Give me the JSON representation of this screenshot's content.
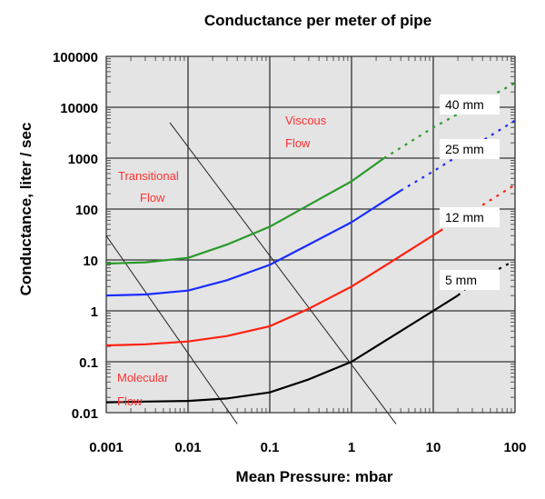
{
  "chart_data": {
    "type": "line",
    "title": "Conductance per meter of pipe",
    "xlabel": "Mean Pressure: mbar",
    "ylabel": "Conductance, liter / sec",
    "xscale": "log",
    "yscale": "log",
    "xlim": [
      0.001,
      100
    ],
    "ylim": [
      0.01,
      100000
    ],
    "grid": true,
    "xticks": [
      "0.001",
      "0.01",
      "0.1",
      "1",
      "10",
      "100"
    ],
    "yticks": [
      "0.01",
      "0.1",
      "1",
      "10",
      "100",
      "1000",
      "10000",
      "100000"
    ],
    "series": [
      {
        "name": "40 mm",
        "color": "#2a9a2a",
        "x": [
          0.001,
          0.003,
          0.01,
          0.03,
          0.1,
          0.3,
          1,
          2.5
        ],
        "y": [
          8.5,
          9,
          11,
          20,
          45,
          120,
          350,
          1000
        ],
        "dotted_x": [
          2.5,
          10,
          100
        ],
        "dotted_y": [
          1000,
          4000,
          30000
        ]
      },
      {
        "name": "25 mm",
        "color": "#1a2cff",
        "x": [
          0.001,
          0.003,
          0.01,
          0.03,
          0.1,
          0.3,
          1,
          4
        ],
        "y": [
          2,
          2.1,
          2.5,
          4,
          8,
          20,
          55,
          230
        ],
        "dotted_x": [
          4,
          10,
          100
        ],
        "dotted_y": [
          230,
          550,
          5500
        ]
      },
      {
        "name": "12 mm",
        "color": "#ff2010",
        "x": [
          0.001,
          0.003,
          0.01,
          0.03,
          0.1,
          0.3,
          1,
          3,
          13
        ],
        "y": [
          0.21,
          0.22,
          0.25,
          0.32,
          0.5,
          1.1,
          3,
          9,
          40
        ],
        "dotted_x": [
          40,
          100
        ],
        "dotted_y": [
          120,
          300
        ]
      },
      {
        "name": "5 mm",
        "color": "#000000",
        "x": [
          0.001,
          0.003,
          0.01,
          0.03,
          0.1,
          0.3,
          1,
          3,
          10,
          20
        ],
        "y": [
          0.016,
          0.0165,
          0.017,
          0.019,
          0.025,
          0.045,
          0.1,
          0.3,
          1,
          2
        ],
        "dotted_x": [
          20,
          30,
          90
        ],
        "dotted_y": [
          2,
          3.5,
          9
        ]
      }
    ],
    "boundary_lines": [
      {
        "x": [
          0.001,
          0.04
        ],
        "y": [
          30,
          0.006
        ]
      },
      {
        "x": [
          0.006,
          3.5
        ],
        "y": [
          5000,
          0.006
        ]
      }
    ],
    "annotations": {
      "viscous": [
        "Viscous",
        "Flow"
      ],
      "transitional": [
        "Transitional",
        "Flow"
      ],
      "molecular": [
        "Molecular",
        "Flow"
      ]
    }
  }
}
